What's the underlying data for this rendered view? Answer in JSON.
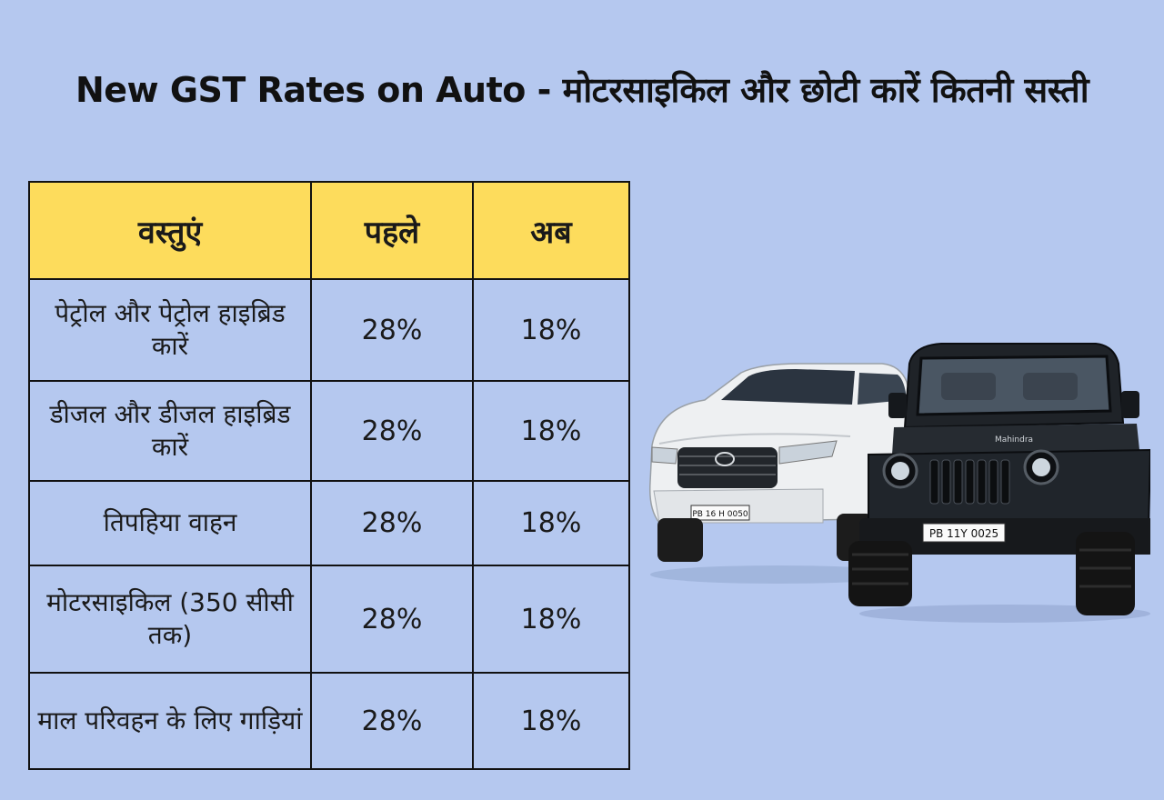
{
  "title": "New GST Rates on Auto - मोटरसाइकिल और छोटी कारें कितनी सस्ती",
  "table": {
    "headers": [
      "वस्तुएं",
      "पहले",
      "अब"
    ],
    "rows": [
      {
        "item": "पेट्रोल और पेट्रोल हाइब्रिड कारें",
        "before": "28%",
        "now": "18%"
      },
      {
        "item": "डीजल और डीजल हाइब्रिड कारें",
        "before": "28%",
        "now": "18%"
      },
      {
        "item": "तिपहिया वाहन",
        "before": "28%",
        "now": "18%"
      },
      {
        "item": "मोटरसाइकिल (350 सीसी तक)",
        "before": "28%",
        "now": "18%"
      },
      {
        "item": "माल परिवहन के लिए गाड़ियां",
        "before": "28%",
        "now": "18%"
      }
    ]
  },
  "image": {
    "plates": [
      "PB 16 H 0050",
      "PB 11Y 0025"
    ],
    "badge": "Mahindra"
  },
  "colors": {
    "background": "#b5c8ef",
    "header": "#fddc5c",
    "border": "#111111"
  }
}
